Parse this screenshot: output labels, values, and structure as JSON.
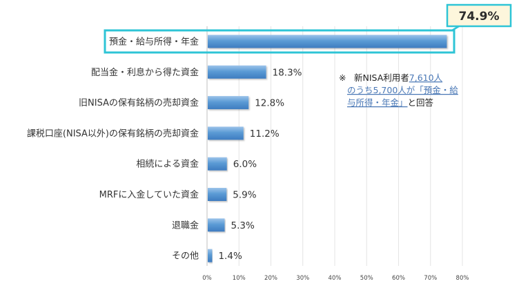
{
  "chart_data": {
    "type": "bar",
    "orientation": "horizontal",
    "categories": [
      "預金・給与所得・年金",
      "配当金・利息から得た資金",
      "旧NISAの保有銘柄の売却資金",
      "課税口座(NISA以外)の保有銘柄の売却資金",
      "相続による資金",
      "MRFに入金していた資金",
      "退職金",
      "その他"
    ],
    "values": [
      74.9,
      18.3,
      12.8,
      11.2,
      6.0,
      5.9,
      5.3,
      1.4
    ],
    "value_labels": [
      "74.9%",
      "18.3%",
      "12.8%",
      "11.2%",
      "6.0%",
      "5.9%",
      "5.3%",
      "1.4%"
    ],
    "xlim": [
      0,
      80
    ],
    "x_ticks": [
      0,
      10,
      20,
      30,
      40,
      50,
      60,
      70,
      80
    ],
    "x_tick_labels": [
      "0%",
      "10%",
      "20%",
      "30%",
      "40%",
      "50%",
      "60%",
      "70%",
      "80%"
    ],
    "grid": "vertical",
    "highlight_index": 0,
    "annotation": {
      "mark": "※",
      "lines": [
        [
          {
            "text": "新NISA利用者",
            "link": false
          },
          {
            "text": "7,610人",
            "link": true
          }
        ],
        [
          {
            "text": "のうち5,700人が「預金・給",
            "link": true
          }
        ],
        [
          {
            "text": "与所得・年金」",
            "link": true
          },
          {
            "text": "と回答",
            "link": false
          }
        ]
      ]
    },
    "colors": {
      "bar_fill": "#5b9bd5",
      "bar_fill_light": "#9cc3ea",
      "bar_fill_dark": "#3e7cc0",
      "highlight": "#2ec4d6",
      "callout_fill": "#fdf6dc",
      "grid": "#e4e4e4",
      "link": "#4a78b6"
    }
  }
}
